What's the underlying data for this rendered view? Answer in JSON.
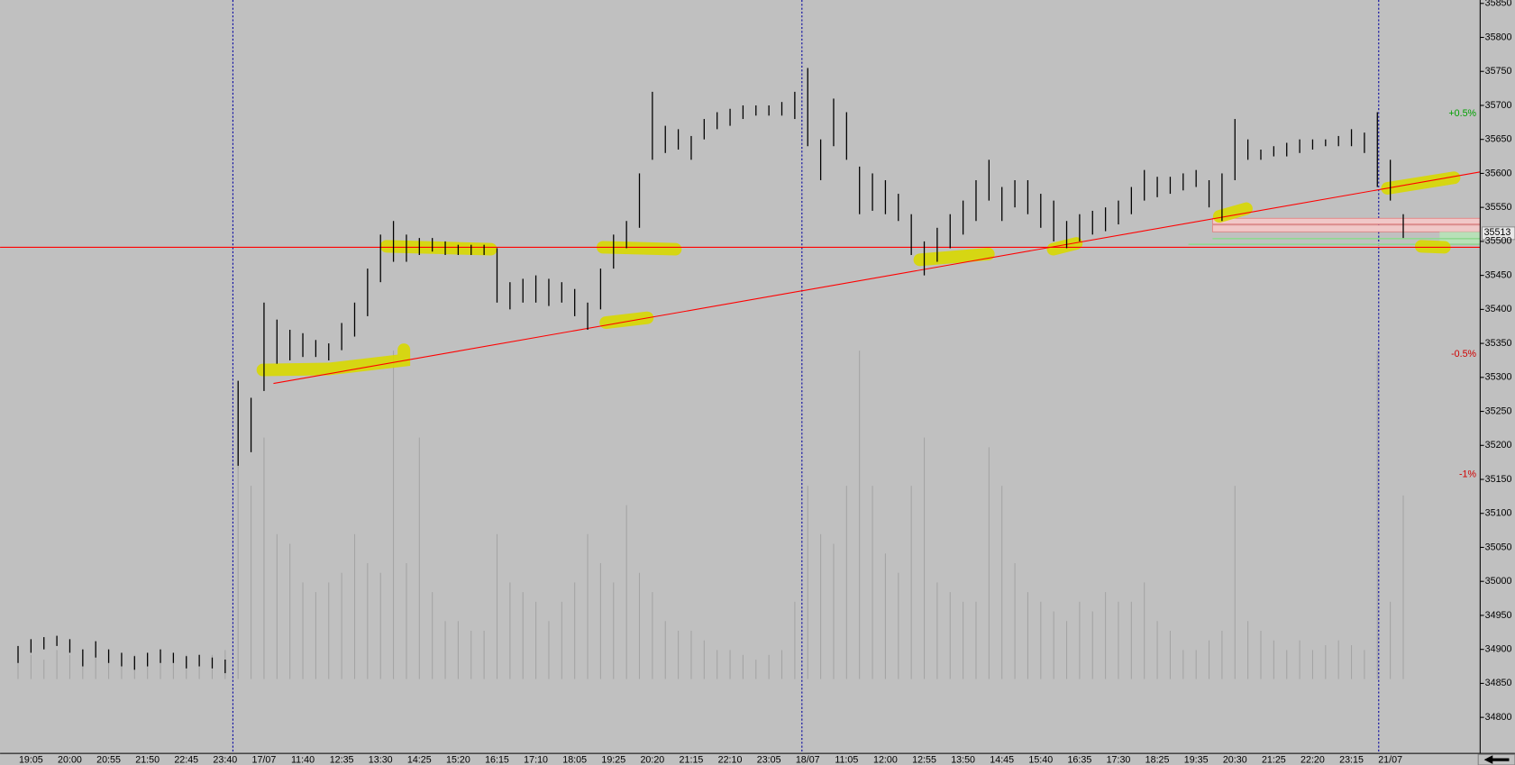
{
  "chart_data": {
    "type": "hilo",
    "categories": [
      null,
      "19:05",
      null,
      null,
      "20:00",
      null,
      null,
      "20:55",
      null,
      null,
      "21:50",
      null,
      null,
      "22:45",
      null,
      null,
      "23:40",
      null,
      null,
      "17/07",
      null,
      null,
      "11:40",
      null,
      null,
      "12:35",
      null,
      null,
      "13:30",
      null,
      null,
      "14:25",
      null,
      null,
      "15:20",
      null,
      null,
      "16:15",
      null,
      null,
      "17:10",
      null,
      null,
      "18:05",
      null,
      null,
      "19:25",
      null,
      null,
      "20:20",
      null,
      null,
      "21:15",
      null,
      null,
      "22:10",
      null,
      null,
      "23:05",
      null,
      null,
      "18/07",
      null,
      null,
      "11:05",
      null,
      null,
      "12:00",
      null,
      null,
      "12:55",
      null,
      null,
      "13:50",
      null,
      null,
      "14:45",
      null,
      null,
      "15:40",
      null,
      null,
      "16:35",
      null,
      null,
      "17:30",
      null,
      null,
      "18:25",
      null,
      null,
      "19:35",
      null,
      null,
      "20:30",
      null,
      null,
      "21:25",
      null,
      null,
      "22:20",
      null,
      null,
      "23:15",
      null,
      null,
      "21/07",
      null
    ],
    "high": [
      34905,
      34915,
      34918,
      34920,
      34915,
      34900,
      34912,
      34900,
      34895,
      34890,
      34895,
      34900,
      34895,
      34890,
      34892,
      34888,
      34885,
      35295,
      35270,
      35410,
      35385,
      35370,
      35365,
      35355,
      35350,
      35380,
      35410,
      35460,
      35510,
      35530,
      35510,
      35505,
      35505,
      35500,
      35495,
      35495,
      35495,
      35490,
      35440,
      35445,
      35450,
      35445,
      35440,
      35430,
      35410,
      35460,
      35510,
      35530,
      35600,
      35720,
      35670,
      35665,
      35655,
      35680,
      35690,
      35695,
      35700,
      35700,
      35700,
      35705,
      35720,
      35755,
      35650,
      35710,
      35690,
      35610,
      35600,
      35590,
      35570,
      35540,
      35500,
      35520,
      35540,
      35560,
      35590,
      35620,
      35580,
      35590,
      35590,
      35570,
      35560,
      35530,
      35540,
      35545,
      35550,
      35560,
      35580,
      35605,
      35595,
      35595,
      35600,
      35605,
      35590,
      35600,
      35680,
      35650,
      35635,
      35640,
      35645,
      35650,
      35650,
      35650,
      35655,
      35665,
      35660,
      35690,
      35620,
      35540
    ],
    "low": [
      34880,
      34895,
      34900,
      34905,
      34895,
      34875,
      34888,
      34880,
      34875,
      34870,
      34875,
      34880,
      34880,
      34872,
      34875,
      34872,
      34865,
      35170,
      35190,
      35280,
      35320,
      35325,
      35330,
      35330,
      35325,
      35340,
      35360,
      35390,
      35440,
      35470,
      35470,
      35480,
      35485,
      35480,
      35480,
      35480,
      35480,
      35410,
      35400,
      35410,
      35410,
      35405,
      35410,
      35390,
      35370,
      35400,
      35460,
      35490,
      35520,
      35620,
      35630,
      35635,
      35620,
      35650,
      35665,
      35670,
      35680,
      35685,
      35685,
      35685,
      35680,
      35640,
      35590,
      35640,
      35620,
      35540,
      35545,
      35540,
      35530,
      35480,
      35450,
      35470,
      35490,
      35510,
      35530,
      35560,
      35530,
      35550,
      35540,
      35520,
      35500,
      35490,
      35500,
      35510,
      35515,
      35525,
      35540,
      35560,
      35565,
      35570,
      35575,
      35580,
      35550,
      35530,
      35590,
      35620,
      35620,
      35625,
      35625,
      35630,
      35635,
      35640,
      35640,
      35640,
      35630,
      35580,
      35560,
      35505
    ],
    "volume": [
      30,
      25,
      20,
      30,
      25,
      20,
      25,
      30,
      20,
      25,
      20,
      25,
      20,
      25,
      20,
      25,
      30,
      300,
      200,
      250,
      150,
      140,
      100,
      90,
      100,
      110,
      150,
      120,
      110,
      340,
      120,
      250,
      90,
      60,
      60,
      50,
      50,
      150,
      100,
      90,
      80,
      60,
      80,
      100,
      150,
      120,
      100,
      180,
      110,
      90,
      60,
      50,
      50,
      40,
      30,
      30,
      25,
      20,
      25,
      30,
      80,
      200,
      150,
      140,
      200,
      340,
      200,
      130,
      110,
      200,
      250,
      100,
      90,
      80,
      80,
      240,
      200,
      120,
      90,
      80,
      70,
      60,
      80,
      70,
      90,
      80,
      80,
      100,
      60,
      50,
      30,
      30,
      40,
      50,
      200,
      60,
      50,
      40,
      30,
      40,
      30,
      35,
      40,
      35,
      30,
      340,
      80,
      190
    ],
    "ylim": [
      34747,
      35855
    ],
    "yticks": [
      34800,
      34850,
      34900,
      34950,
      35000,
      35050,
      35100,
      35150,
      35200,
      35250,
      35300,
      35350,
      35400,
      35450,
      35500,
      35550,
      35600,
      35650,
      35700,
      35750,
      35800,
      35850
    ],
    "last_price": 35513,
    "annotations": [
      {
        "value": 35688,
        "label": "+0.5%",
        "color": "#00a000"
      },
      {
        "value": 35334,
        "label": "-0.5%",
        "color": "#d00000"
      },
      {
        "value": 35157,
        "label": "-1%",
        "color": "#d00000"
      }
    ]
  }
}
